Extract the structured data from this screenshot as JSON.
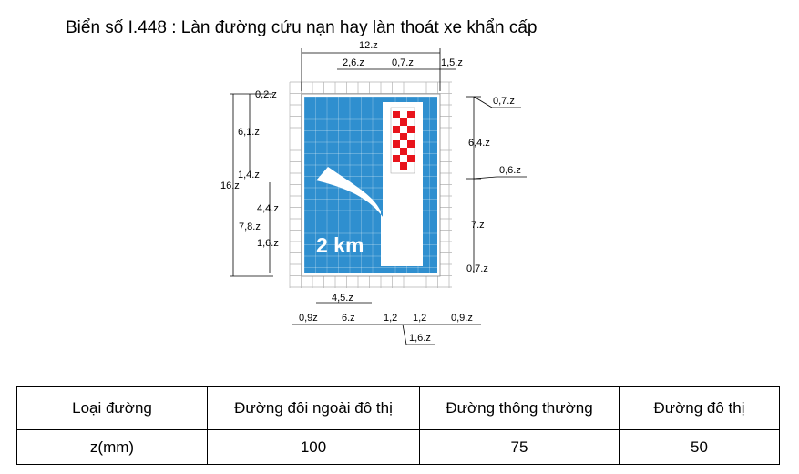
{
  "title": "Biển số I.448 : Làn đường cứu nạn hay làn thoát xe khẩn cấp",
  "sign": {
    "distance_text": "2 km",
    "colors": {
      "background": "#2f8fcf",
      "border": "#ffffff",
      "symbol": "#ffffff",
      "barrier": "#e8141c",
      "grid": "#b3b3b3"
    }
  },
  "dimensions": {
    "top_total": "12.z",
    "top_left": "2,6.z",
    "top_mid": "0,7.z",
    "top_right": "1,5.z",
    "left_top": "0,2.z",
    "left_upper": "6,1.z",
    "left_mid": "1,4.z",
    "left_total": "16.z",
    "left_lower1": "4,4.z",
    "left_lower2": "7,8.z",
    "left_lower3": "1,6.z",
    "right_top": "0,7.z",
    "right_upper": "6,4.z",
    "right_mid": "0,6.z",
    "right_lower": "7.z",
    "right_bottom": "0,7.z",
    "bottom_arrow": "4,5.z",
    "bottom_a": "0,9z",
    "bottom_b": "6.z",
    "bottom_c": "1,2",
    "bottom_d": "1,2",
    "bottom_e": "0,9.z",
    "bottom_f": "1,6.z"
  },
  "table": {
    "headers": [
      "Loại đường",
      "Đường đôi ngoài đô thị",
      "Đường thông thường",
      "Đường đô thị"
    ],
    "row": [
      "z(mm)",
      "100",
      "75",
      "50"
    ]
  }
}
